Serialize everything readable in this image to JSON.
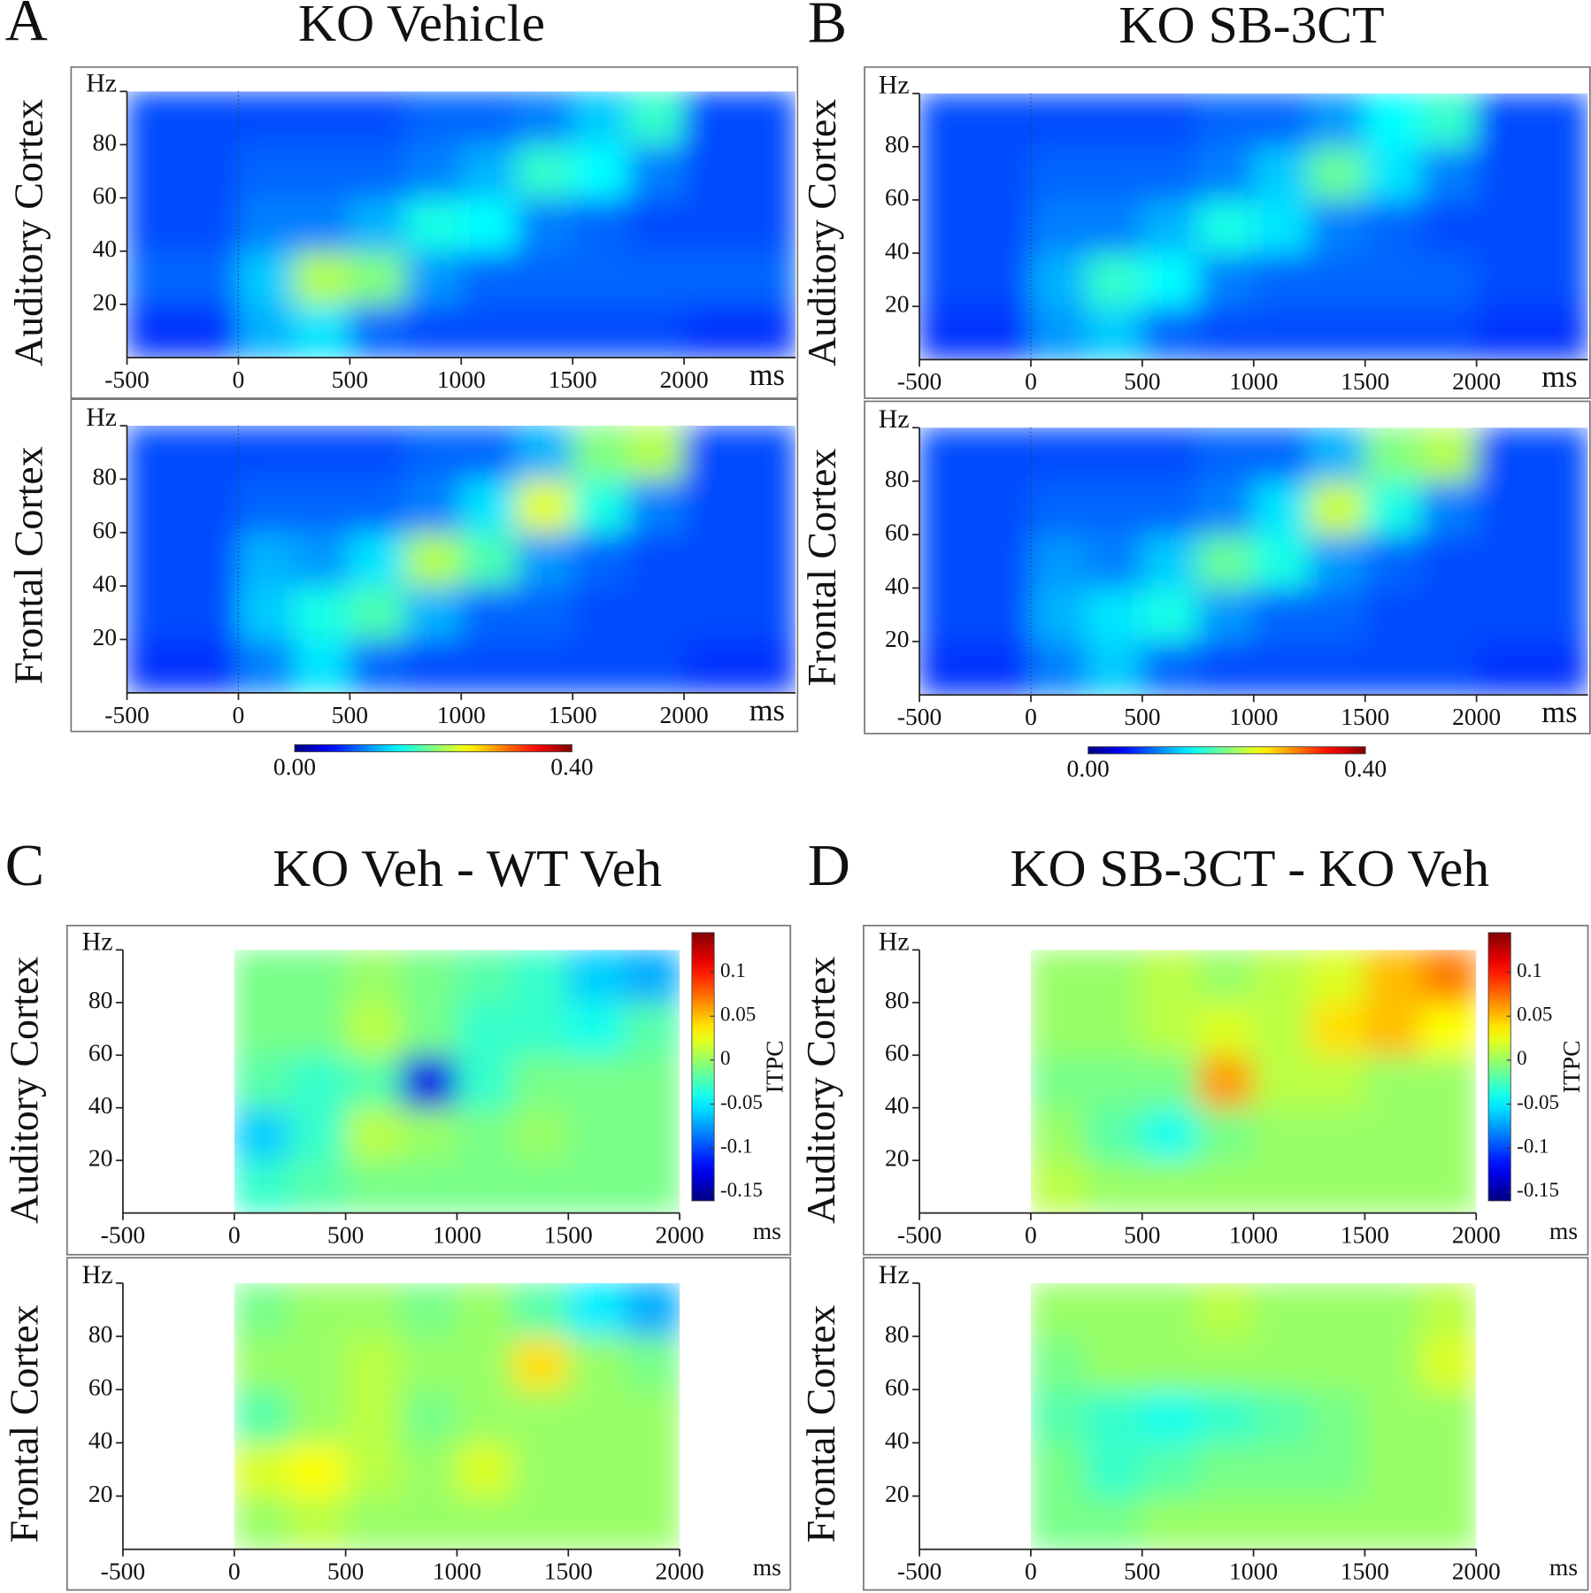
{
  "chart_data": [
    {
      "type": "heatmap",
      "label": "A",
      "title": "KO Vehicle",
      "ylabel": "Auditory Cortex",
      "yunit": "Hz",
      "xunit": "ms",
      "xlim": [
        -500,
        2500
      ],
      "ylim": [
        0,
        100
      ],
      "xticks": [
        -500,
        0,
        500,
        1000,
        1500,
        2000
      ],
      "yticks": [
        20,
        40,
        60,
        80
      ],
      "xbins": [
        -500,
        -250,
        0,
        250,
        500,
        750,
        1000,
        1250,
        1500,
        1750,
        2000,
        2250,
        2500
      ],
      "ybins": [
        0,
        20,
        40,
        60,
        80,
        100
      ],
      "colormap": "jet",
      "clim": [
        0,
        0.4
      ],
      "values": [
        [
          0.07,
          0.07,
          0.12,
          0.14,
          0.09,
          0.08,
          0.08,
          0.08,
          0.08,
          0.08,
          0.07,
          0.07
        ],
        [
          0.09,
          0.09,
          0.13,
          0.22,
          0.2,
          0.11,
          0.09,
          0.09,
          0.09,
          0.09,
          0.09,
          0.09
        ],
        [
          0.08,
          0.08,
          0.1,
          0.1,
          0.12,
          0.16,
          0.15,
          0.1,
          0.09,
          0.08,
          0.08,
          0.08
        ],
        [
          0.08,
          0.08,
          0.09,
          0.09,
          0.09,
          0.1,
          0.12,
          0.17,
          0.15,
          0.1,
          0.08,
          0.08
        ],
        [
          0.08,
          0.08,
          0.08,
          0.08,
          0.08,
          0.09,
          0.09,
          0.1,
          0.13,
          0.17,
          0.08,
          0.08
        ]
      ]
    },
    {
      "type": "heatmap",
      "ylabel": "Frontal Cortex",
      "yunit": "Hz",
      "xunit": "ms",
      "xlim": [
        -500,
        2500
      ],
      "ylim": [
        0,
        100
      ],
      "xticks": [
        -500,
        0,
        500,
        1000,
        1500,
        2000
      ],
      "yticks": [
        20,
        40,
        60,
        80
      ],
      "xbins": [
        -500,
        -250,
        0,
        250,
        500,
        750,
        1000,
        1250,
        1500,
        1750,
        2000,
        2250,
        2500
      ],
      "ybins": [
        0,
        20,
        40,
        60,
        80,
        100
      ],
      "colormap": "jet",
      "clim": [
        0,
        0.4
      ],
      "colorbar": {
        "lim": [
          0,
          0.4
        ],
        "ticks": [
          {
            "value": 0,
            "label": "0.00"
          },
          {
            "value": 0.4,
            "label": "0.40"
          }
        ]
      },
      "values": [
        [
          0.07,
          0.07,
          0.1,
          0.14,
          0.09,
          0.08,
          0.08,
          0.08,
          0.08,
          0.08,
          0.07,
          0.07
        ],
        [
          0.08,
          0.08,
          0.13,
          0.16,
          0.18,
          0.12,
          0.09,
          0.09,
          0.08,
          0.08,
          0.08,
          0.08
        ],
        [
          0.08,
          0.08,
          0.12,
          0.11,
          0.14,
          0.22,
          0.18,
          0.11,
          0.09,
          0.08,
          0.08,
          0.08
        ],
        [
          0.08,
          0.08,
          0.09,
          0.09,
          0.09,
          0.1,
          0.14,
          0.24,
          0.16,
          0.1,
          0.08,
          0.08
        ],
        [
          0.08,
          0.08,
          0.08,
          0.08,
          0.08,
          0.09,
          0.09,
          0.12,
          0.2,
          0.22,
          0.08,
          0.08
        ]
      ]
    },
    {
      "type": "heatmap",
      "label": "B",
      "title": "KO SB-3CT",
      "ylabel": "Auditory Cortex",
      "yunit": "Hz",
      "xunit": "ms",
      "xlim": [
        -500,
        2500
      ],
      "ylim": [
        0,
        100
      ],
      "xticks": [
        -500,
        0,
        500,
        1000,
        1500,
        2000
      ],
      "yticks": [
        20,
        40,
        60,
        80
      ],
      "xbins": [
        -500,
        -250,
        0,
        250,
        500,
        750,
        1000,
        1250,
        1500,
        1750,
        2000,
        2250,
        2500
      ],
      "ybins": [
        0,
        20,
        40,
        60,
        80,
        100
      ],
      "colormap": "jet",
      "clim": [
        0,
        0.4
      ],
      "values": [
        [
          0.07,
          0.07,
          0.11,
          0.13,
          0.09,
          0.08,
          0.08,
          0.08,
          0.08,
          0.08,
          0.07,
          0.07
        ],
        [
          0.08,
          0.08,
          0.12,
          0.17,
          0.15,
          0.1,
          0.09,
          0.09,
          0.09,
          0.09,
          0.08,
          0.08
        ],
        [
          0.08,
          0.08,
          0.1,
          0.1,
          0.12,
          0.16,
          0.14,
          0.1,
          0.09,
          0.08,
          0.08,
          0.08
        ],
        [
          0.08,
          0.08,
          0.09,
          0.09,
          0.09,
          0.1,
          0.13,
          0.19,
          0.14,
          0.1,
          0.08,
          0.08
        ],
        [
          0.08,
          0.08,
          0.08,
          0.08,
          0.08,
          0.09,
          0.09,
          0.11,
          0.15,
          0.17,
          0.08,
          0.08
        ]
      ]
    },
    {
      "type": "heatmap",
      "ylabel": "Frontal Cortex",
      "yunit": "Hz",
      "xunit": "ms",
      "xlim": [
        -500,
        2500
      ],
      "ylim": [
        0,
        100
      ],
      "xticks": [
        -500,
        0,
        500,
        1000,
        1500,
        2000
      ],
      "yticks": [
        20,
        40,
        60,
        80
      ],
      "xbins": [
        -500,
        -250,
        0,
        250,
        500,
        750,
        1000,
        1250,
        1500,
        1750,
        2000,
        2250,
        2500
      ],
      "ybins": [
        0,
        20,
        40,
        60,
        80,
        100
      ],
      "colormap": "jet",
      "clim": [
        0,
        0.4
      ],
      "colorbar": {
        "lim": [
          0,
          0.4
        ],
        "ticks": [
          {
            "value": 0,
            "label": "0.00"
          },
          {
            "value": 0.4,
            "label": "0.40"
          }
        ]
      },
      "values": [
        [
          0.07,
          0.07,
          0.1,
          0.13,
          0.09,
          0.08,
          0.08,
          0.08,
          0.08,
          0.08,
          0.07,
          0.07
        ],
        [
          0.08,
          0.08,
          0.12,
          0.14,
          0.16,
          0.11,
          0.09,
          0.09,
          0.08,
          0.08,
          0.08,
          0.08
        ],
        [
          0.08,
          0.08,
          0.11,
          0.1,
          0.13,
          0.19,
          0.16,
          0.11,
          0.09,
          0.08,
          0.08,
          0.08
        ],
        [
          0.08,
          0.08,
          0.09,
          0.09,
          0.09,
          0.1,
          0.14,
          0.23,
          0.16,
          0.1,
          0.08,
          0.08
        ],
        [
          0.08,
          0.08,
          0.08,
          0.08,
          0.08,
          0.09,
          0.09,
          0.12,
          0.2,
          0.22,
          0.08,
          0.08
        ]
      ]
    },
    {
      "type": "heatmap",
      "label": "C",
      "title": "KO Veh - WT Veh",
      "ylabel": "Auditory Cortex",
      "yunit": "Hz",
      "xunit": "ms",
      "xlim": [
        -500,
        2000
      ],
      "ylim": [
        0,
        100
      ],
      "xticks": [
        -500,
        0,
        500,
        1000,
        1500,
        2000
      ],
      "yticks": [
        20,
        40,
        60,
        80
      ],
      "xbins": [
        0,
        250,
        500,
        750,
        1000,
        1250,
        1500,
        1750,
        2000
      ],
      "ybins": [
        0,
        20,
        40,
        60,
        80,
        100
      ],
      "colormap": "jet",
      "clim": [
        -0.16,
        0.145
      ],
      "colorbar": {
        "lim": [
          -0.16,
          0.145
        ],
        "ticks": [
          0.1,
          0.05,
          0,
          -0.05,
          -0.1,
          -0.15
        ],
        "label": "ITPC"
      },
      "values": [
        [
          -0.03,
          -0.02,
          -0.01,
          -0.01,
          -0.01,
          -0.01,
          -0.01,
          -0.01
        ],
        [
          -0.06,
          -0.03,
          0.01,
          0.0,
          -0.01,
          0.0,
          -0.01,
          -0.01
        ],
        [
          -0.02,
          -0.03,
          -0.02,
          -0.13,
          -0.03,
          -0.01,
          -0.01,
          -0.01
        ],
        [
          -0.01,
          -0.01,
          0.01,
          -0.01,
          -0.03,
          -0.03,
          -0.04,
          -0.02
        ],
        [
          -0.01,
          -0.01,
          0.0,
          -0.01,
          -0.02,
          -0.03,
          -0.06,
          -0.07
        ]
      ]
    },
    {
      "type": "heatmap",
      "ylabel": "Frontal Cortex",
      "yunit": "Hz",
      "xunit": "ms",
      "xlim": [
        -500,
        2000
      ],
      "ylim": [
        0,
        100
      ],
      "xticks": [
        -500,
        0,
        500,
        1000,
        1500,
        2000
      ],
      "yticks": [
        20,
        40,
        60,
        80
      ],
      "xbins": [
        0,
        250,
        500,
        750,
        1000,
        1250,
        1500,
        1750,
        2000
      ],
      "ybins": [
        0,
        20,
        40,
        60,
        80,
        100
      ],
      "colormap": "jet",
      "clim": [
        -0.16,
        0.145
      ],
      "values": [
        [
          0.0,
          0.01,
          0.0,
          0.0,
          0.0,
          0.0,
          0.0,
          0.0
        ],
        [
          0.02,
          0.03,
          0.01,
          0.0,
          0.02,
          0.0,
          0.0,
          0.0
        ],
        [
          -0.02,
          0.0,
          0.01,
          -0.01,
          0.0,
          0.0,
          0.0,
          0.0
        ],
        [
          0.0,
          0.0,
          0.01,
          0.0,
          0.0,
          0.04,
          0.0,
          -0.01
        ],
        [
          -0.01,
          0.0,
          0.0,
          -0.01,
          0.0,
          -0.02,
          -0.05,
          -0.07
        ]
      ]
    },
    {
      "type": "heatmap",
      "label": "D",
      "title": "KO SB-3CT - KO Veh",
      "ylabel": "Auditory Cortex",
      "yunit": "Hz",
      "xunit": "ms",
      "xlim": [
        -500,
        2000
      ],
      "ylim": [
        0,
        100
      ],
      "xticks": [
        -500,
        0,
        500,
        1000,
        1500,
        2000
      ],
      "yticks": [
        20,
        40,
        60,
        80
      ],
      "xbins": [
        0,
        250,
        500,
        750,
        1000,
        1250,
        1500,
        1750,
        2000
      ],
      "ybins": [
        0,
        20,
        40,
        60,
        80,
        100
      ],
      "colormap": "jet",
      "clim": [
        -0.16,
        0.145
      ],
      "colorbar": {
        "lim": [
          -0.16,
          0.145
        ],
        "ticks": [
          0.1,
          0.05,
          0,
          -0.05,
          -0.1,
          -0.15
        ],
        "label": "ITPC"
      },
      "values": [
        [
          0.01,
          0.0,
          0.0,
          0.0,
          0.0,
          0.0,
          0.0,
          0.0
        ],
        [
          0.0,
          -0.02,
          -0.04,
          -0.01,
          0.0,
          0.0,
          0.0,
          0.0
        ],
        [
          -0.01,
          -0.01,
          -0.01,
          0.06,
          0.01,
          0.01,
          0.0,
          0.0
        ],
        [
          0.0,
          0.0,
          0.01,
          0.02,
          0.01,
          0.04,
          0.05,
          0.03
        ],
        [
          0.0,
          0.0,
          0.01,
          0.0,
          0.01,
          0.02,
          0.05,
          0.07
        ]
      ]
    },
    {
      "type": "heatmap",
      "ylabel": "Frontal Cortex",
      "yunit": "Hz",
      "xunit": "ms",
      "xlim": [
        -500,
        2000
      ],
      "ylim": [
        0,
        100
      ],
      "xticks": [
        -500,
        0,
        500,
        1000,
        1500,
        2000
      ],
      "yticks": [
        20,
        40,
        60,
        80
      ],
      "xbins": [
        0,
        250,
        500,
        750,
        1000,
        1250,
        1500,
        1750,
        2000
      ],
      "ybins": [
        0,
        20,
        40,
        60,
        80,
        100
      ],
      "colormap": "jet",
      "clim": [
        -0.16,
        0.145
      ],
      "values": [
        [
          -0.01,
          -0.01,
          0.0,
          0.0,
          0.0,
          0.0,
          0.0,
          0.0
        ],
        [
          -0.01,
          -0.03,
          -0.02,
          -0.01,
          -0.01,
          -0.01,
          0.0,
          0.0
        ],
        [
          -0.02,
          -0.03,
          -0.04,
          -0.03,
          -0.02,
          -0.01,
          0.0,
          0.0
        ],
        [
          -0.01,
          0.0,
          0.0,
          0.0,
          0.0,
          0.0,
          0.0,
          0.02
        ],
        [
          0.0,
          0.0,
          0.0,
          0.01,
          0.0,
          0.0,
          0.0,
          0.01
        ]
      ]
    }
  ]
}
